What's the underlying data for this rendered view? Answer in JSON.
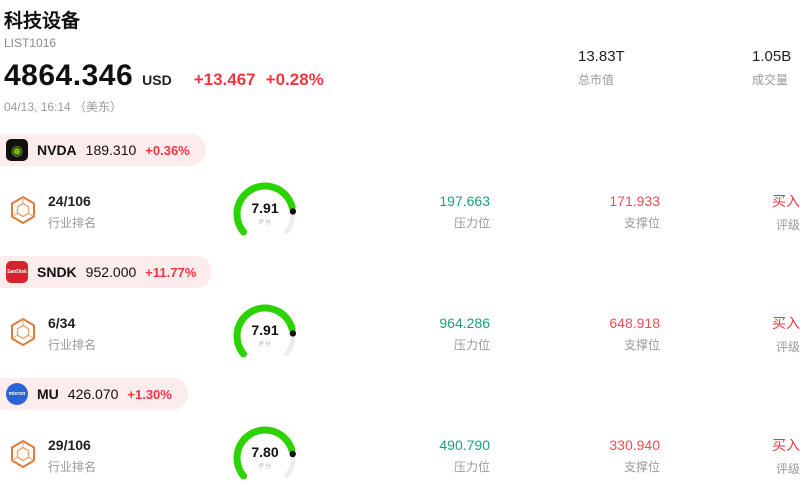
{
  "colors": {
    "red": "#f13642",
    "red_soft": "#ef4d55",
    "teal": "#1aa27e",
    "green": "#2bd301",
    "pill_bg": "#fdecec",
    "muted": "#9a9a9a"
  },
  "header": {
    "title": "科技设备",
    "list_id": "LIST1016",
    "price": "4864.346",
    "currency": "USD",
    "change": "+13.467",
    "change_pct": "+0.28%",
    "timestamp": "04/13, 16:14 （美东）",
    "market_cap": "13.83T",
    "market_cap_label": "总市值",
    "volume": "1.05B",
    "volume_label": "成交量"
  },
  "stocks": [
    {
      "ticker": "NVDA",
      "price": "189.310",
      "change_pct": "+0.36%",
      "rank": "24/106",
      "rank_label": "行业排名",
      "score": "7.91",
      "score_label": "评分",
      "resistance": "197.663",
      "resistance_label": "压力位",
      "support": "171.933",
      "support_label": "支撑位",
      "rating": "买入",
      "rating_label": "评级",
      "logo": {
        "glyph": "◉",
        "bg": "#101010",
        "shape": "square",
        "glyph_color": "#76b900"
      }
    },
    {
      "ticker": "SNDK",
      "price": "952.000",
      "change_pct": "+11.77%",
      "rank": "6/34",
      "rank_label": "行业排名",
      "score": "7.91",
      "score_label": "评分",
      "resistance": "964.286",
      "resistance_label": "压力位",
      "support": "648.918",
      "support_label": "支撑位",
      "rating": "买入",
      "rating_label": "评级",
      "logo": {
        "glyph": "SanDisk",
        "bg": "#d5232e",
        "shape": "square",
        "glyph_color": "#ffffff"
      }
    },
    {
      "ticker": "MU",
      "price": "426.070",
      "change_pct": "+1.30%",
      "rank": "29/106",
      "rank_label": "行业排名",
      "score": "7.80",
      "score_label": "评分",
      "resistance": "490.790",
      "resistance_label": "压力位",
      "support": "330.940",
      "support_label": "支撑位",
      "rating": "买入",
      "rating_label": "评级",
      "logo": {
        "glyph": "micron",
        "bg": "#2a63d4",
        "shape": "circle",
        "glyph_color": "#ffffff"
      }
    }
  ]
}
